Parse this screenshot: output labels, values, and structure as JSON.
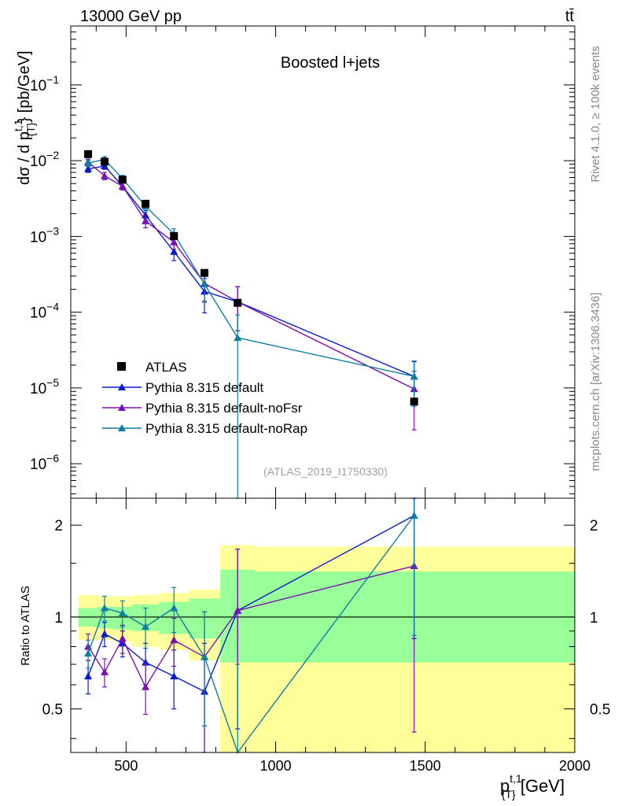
{
  "header": {
    "left": "13000 GeV pp",
    "right": "tt̄"
  },
  "side_labels": {
    "rivet": "Rivet 4.1.0, ≥ 100k events",
    "mcplots": "mcplots.cern.ch [arXiv:1306.3436]"
  },
  "chart_data": [
    {
      "type": "line",
      "title": "Boosted l+jets",
      "analysis_id": "(ATLAS_2019_I1750330)",
      "xlabel": "p_T^{t,1} [GeV]",
      "xlabel_main": "p",
      "xlabel_sup": "t,1",
      "xlabel_sub": "{T}",
      "xlabel_unit": " [GeV]",
      "ylabel": "dσ / d p_T^{t,1} [pb/GeV]",
      "ylabel_parts": {
        "pre": "dσ / d p",
        "sup": "t,1",
        "sub": "{T}",
        "post": "} [pb/GeV]"
      },
      "yscale": "log",
      "xlim": [
        315,
        2000
      ],
      "ylim": [
        3.5e-07,
        0.6
      ],
      "x_ticks": [
        500,
        1000,
        1500,
        2000
      ],
      "y_ticks": [
        {
          "v": 1e-06,
          "base": "10",
          "exp": "−6"
        },
        {
          "v": 1e-05,
          "base": "10",
          "exp": "−5"
        },
        {
          "v": 0.0001,
          "base": "10",
          "exp": "−4"
        },
        {
          "v": 0.001,
          "base": "10",
          "exp": "−3"
        },
        {
          "v": 0.01,
          "base": "10",
          "exp": "−2"
        },
        {
          "v": 0.1,
          "base": "10",
          "exp": "−1"
        }
      ],
      "legend_position": "bottom-left",
      "data": {
        "name": "ATLAS",
        "x": [
          373,
          428,
          488,
          565,
          660,
          762,
          873,
          1463
        ],
        "y": [
          0.0122,
          0.0097,
          0.0056,
          0.0027,
          0.00101,
          0.00033,
          0.000133,
          6.6e-06
        ]
      },
      "series": [
        {
          "name": "Pythia 8.315 default",
          "color": "#0b1ad2",
          "x": [
            373,
            428,
            488,
            565,
            660,
            762,
            873,
            1463
          ],
          "y": [
            0.0078,
            0.0085,
            0.0046,
            0.0019,
            0.00063,
            0.000188,
            0.000137,
            1.42e-05
          ],
          "err": [
            0.0008,
            0.0008,
            0.0005,
            0.0003,
            0.00015,
            9e-05,
            8e-05,
            8e-06
          ]
        },
        {
          "name": "Pythia 8.315 default-noFsr",
          "color": "#7a10b6",
          "x": [
            373,
            428,
            488,
            565,
            660,
            762,
            873,
            1463
          ],
          "y": [
            0.0096,
            0.0063,
            0.0046,
            0.0016,
            0.00084,
            0.00024,
            0.000137,
            9.7e-06
          ],
          "err": [
            0.0009,
            0.0007,
            0.0005,
            0.0003,
            0.00016,
            0.0001,
            8e-05,
            6.9e-06
          ]
        },
        {
          "name": "Pythia 8.315 default-noRap",
          "color": "#0c7fa3",
          "x": [
            373,
            428,
            488,
            565,
            660,
            762,
            873,
            1463
          ],
          "y": [
            0.0093,
            0.0104,
            0.0058,
            0.0025,
            0.00108,
            0.000235,
            4.6e-05,
            1.42e-05
          ],
          "err": [
            0.0009,
            0.0009,
            0.0006,
            0.0004,
            0.00018,
            0.0001,
            4.6e-05,
            8.5e-06
          ]
        }
      ]
    },
    {
      "type": "line",
      "ylabel": "Ratio to ATLAS",
      "yscale": "log",
      "ylim": [
        0.36,
        2.45
      ],
      "y_ticks": [
        0.5,
        1,
        2
      ],
      "y_tick_labels": [
        "0.5",
        "1",
        "2"
      ],
      "reference_line": 1,
      "bands": {
        "bins": [
          [
            340,
            405
          ],
          [
            405,
            455
          ],
          [
            455,
            520
          ],
          [
            520,
            610
          ],
          [
            610,
            710
          ],
          [
            710,
            815
          ],
          [
            815,
            930
          ],
          [
            930,
            2000
          ]
        ],
        "outer": [
          [
            0.84,
            1.18
          ],
          [
            0.84,
            1.17
          ],
          [
            0.83,
            1.17
          ],
          [
            0.8,
            1.18
          ],
          [
            0.78,
            1.2
          ],
          [
            0.72,
            1.23
          ],
          [
            0.3,
            1.72
          ],
          [
            0.3,
            1.7
          ]
        ],
        "inner": [
          [
            0.93,
            1.07
          ],
          [
            0.92,
            1.08
          ],
          [
            0.91,
            1.08
          ],
          [
            0.9,
            1.1
          ],
          [
            0.88,
            1.12
          ],
          [
            0.85,
            1.15
          ],
          [
            0.71,
            1.43
          ],
          [
            0.71,
            1.41
          ]
        ],
        "outer_color": "#ffff99",
        "inner_color": "#99ff99"
      },
      "series": [
        {
          "name": "Pythia 8.315 default",
          "color": "#0b1ad2",
          "y": [
            0.64,
            0.88,
            0.82,
            0.71,
            0.64,
            0.57,
            1.05,
            2.15
          ],
          "err": [
            0.08,
            0.08,
            0.08,
            0.11,
            0.14,
            0.25,
            0.62,
            1.3
          ]
        },
        {
          "name": "Pythia 8.315 default-noFsr",
          "color": "#7a10b6",
          "y": [
            0.8,
            0.66,
            0.85,
            0.59,
            0.84,
            0.74,
            1.05,
            1.47
          ],
          "err": [
            0.08,
            0.07,
            0.09,
            0.11,
            0.15,
            0.3,
            0.62,
            1.05
          ]
        },
        {
          "name": "Pythia 8.315 default-noRap",
          "color": "#0c7fa3",
          "y": [
            0.76,
            1.07,
            1.03,
            0.93,
            1.07,
            0.74,
            0.35,
            2.15
          ],
          "err": [
            0.08,
            0.1,
            0.1,
            0.14,
            0.18,
            0.3,
            0.35,
            1.28
          ]
        }
      ]
    }
  ]
}
